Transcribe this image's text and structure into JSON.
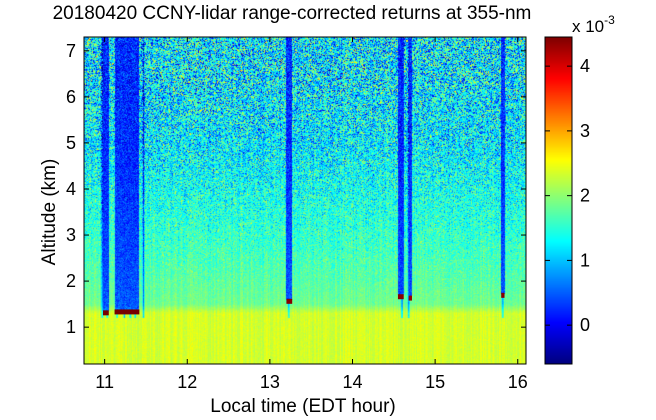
{
  "chart_data": {
    "type": "heatmap",
    "title": "20180420 CCNY-lidar range-corrected returns at 355-nm",
    "xlabel": "Local time (EDT hour)",
    "ylabel": "Altitude (km)",
    "xlim": [
      10.75,
      16.1
    ],
    "ylim": [
      0.2,
      7.3
    ],
    "x_ticks": [
      11,
      12,
      13,
      14,
      15,
      16
    ],
    "y_ticks": [
      1,
      2,
      3,
      4,
      5,
      6,
      7
    ],
    "colorbar": {
      "label": "x 10^-3",
      "exponent_base": "x 10",
      "exponent_power": "-3",
      "range": [
        -0.6,
        4.45
      ],
      "ticks": [
        0,
        1,
        2,
        3,
        4
      ],
      "colormap": "jet"
    },
    "field_levels": {
      "near_surface_0.2_to_1.3km": 2.35,
      "lower_mid_1.5km": 1.85,
      "mid_3km": 1.55,
      "upper_5km_plus": 1.2,
      "noise_amplitude_at_top": 1.2
    },
    "cloud_layers": [
      {
        "x_start": 10.98,
        "x_end": 11.05,
        "altitude_km": 1.3,
        "value": 4.3
      },
      {
        "x_start": 11.12,
        "x_end": 11.42,
        "altitude_km": 1.32,
        "value": 4.3
      },
      {
        "x_start": 13.2,
        "x_end": 13.27,
        "altitude_km": 1.55,
        "value": 4.2
      },
      {
        "x_start": 14.55,
        "x_end": 14.62,
        "altitude_km": 1.65,
        "value": 4.2
      },
      {
        "x_start": 14.68,
        "x_end": 14.72,
        "altitude_km": 1.62,
        "value": 4.1
      },
      {
        "x_start": 15.8,
        "x_end": 15.84,
        "altitude_km": 1.68,
        "value": 4.2
      }
    ],
    "attenuation_streaks_x": [
      10.97,
      11.03,
      11.15,
      11.24,
      11.31,
      11.37,
      11.47,
      13.23,
      14.6,
      14.68,
      15.82
    ],
    "grid": false,
    "legend": "colorbar-right"
  }
}
